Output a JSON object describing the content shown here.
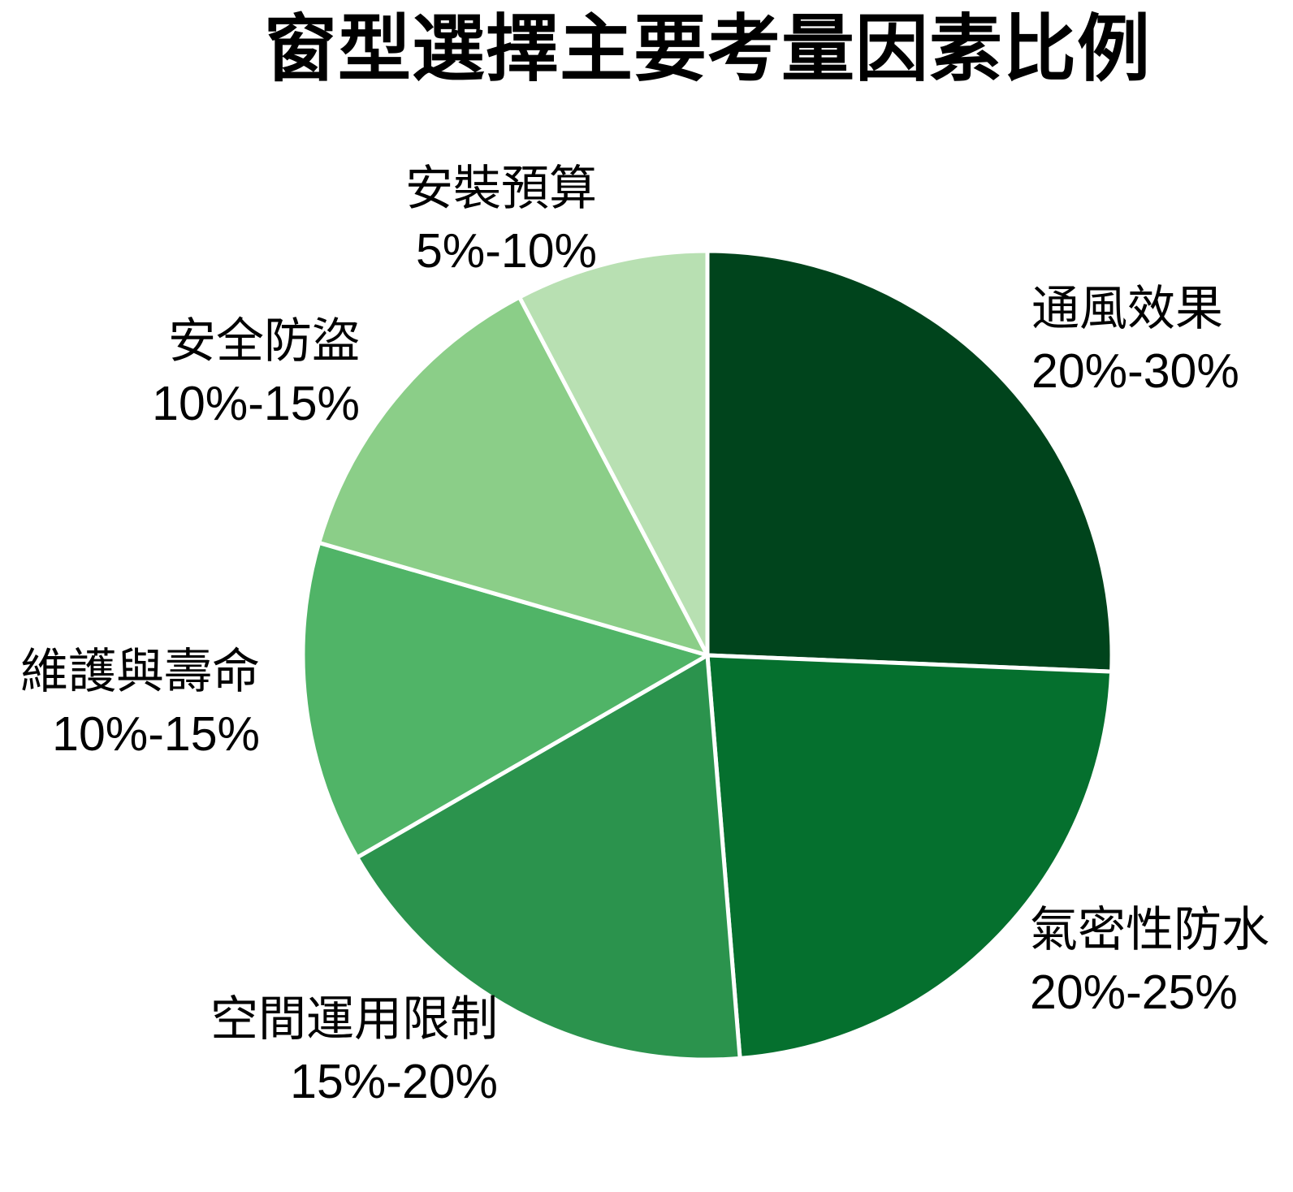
{
  "title": "窗型選擇主要考量因素比例",
  "chart_data": {
    "type": "pie",
    "title": "窗型選擇主要考量因素比例",
    "direction": "clockwise",
    "start_angle": "12-oclock",
    "legend_position": "none",
    "slice_border_color": "#ffffff",
    "slices": [
      {
        "label": "通風效果",
        "range": "20%-30%",
        "value": 25,
        "color": "#00441c"
      },
      {
        "label": "氣密性防水",
        "range": "20%-25%",
        "value": 22.5,
        "color": "#05702e"
      },
      {
        "label": "空間運用限制",
        "range": "15%-20%",
        "value": 17.5,
        "color": "#2b934d"
      },
      {
        "label": "維護與壽命",
        "range": "10%-15%",
        "value": 12.5,
        "color": "#50b467"
      },
      {
        "label": "安全防盜",
        "range": "10%-15%",
        "value": 12.5,
        "color": "#8bce88"
      },
      {
        "label": "安裝預算",
        "range": "5%-10%",
        "value": 7.5,
        "color": "#b8e0b2"
      }
    ]
  }
}
